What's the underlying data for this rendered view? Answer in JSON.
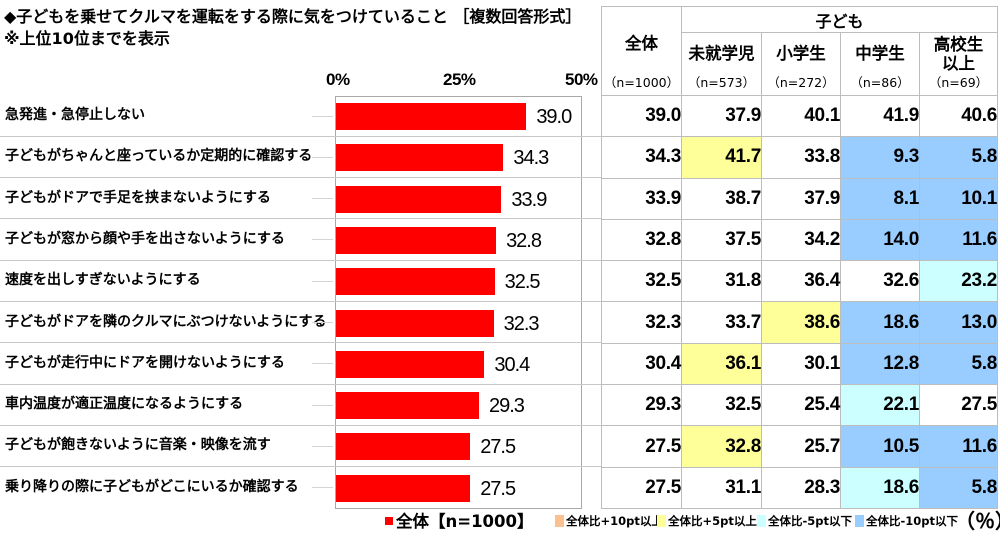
{
  "title": {
    "line1": "◆子どもを乗せてクルマを運転をする際に気をつけていること ［複数回答形式］",
    "line2": "※上位10位までを表示"
  },
  "colors": {
    "bar": "#FF0000",
    "plus10": "#FAC090",
    "plus5": "#FFFF99",
    "minus5": "#CCFFFF",
    "minus10": "#99CCFF"
  },
  "chart_data": [
    {
      "type": "bar",
      "orientation": "horizontal",
      "title": "子どもを乗せてクルマを運転をする際に気をつけていること［複数回答形式］",
      "xlabel": "",
      "ylabel": "",
      "xlim": [
        0,
        50
      ],
      "ticks": [
        "0%",
        "25%",
        "50%"
      ],
      "grid": false,
      "legend_position": "bottom",
      "categories": [
        "急発進・急停止しない",
        "子どもがちゃんと座っているか定期的に確認する",
        "子どもがドアで手足を挟まないようにする",
        "子どもが窓から顔や手を出さないようにする",
        "速度を出しすぎないようにする",
        "子どもがドアを隣のクルマにぶつけないようにする",
        "子どもが走行中にドアを開けないようにする",
        "車内温度が適正温度になるようにする",
        "子どもが飽きないように音楽・映像を流す",
        "乗り降りの際に子どもがどこにいるか確認する"
      ],
      "series": [
        {
          "name": "全体【n=1000】",
          "values": [
            39.0,
            34.3,
            33.9,
            32.8,
            32.5,
            32.3,
            30.4,
            29.3,
            27.5,
            27.5
          ],
          "labels": [
            "39.0",
            "34.3",
            "33.9",
            "32.8",
            "32.5",
            "32.3",
            "30.4",
            "29.3",
            "27.5",
            "27.5"
          ]
        }
      ]
    },
    {
      "type": "table",
      "unit": "（％）",
      "group_header": "子ども",
      "columns": [
        {
          "name": "全体",
          "n": "（n=1000）"
        },
        {
          "name": "未就学児",
          "n": "（n=573）"
        },
        {
          "name": "小学生",
          "n": "（n=272）"
        },
        {
          "name": "中学生",
          "n": "（n=86）"
        },
        {
          "name1": "高校生",
          "name2": "以上",
          "n": "（n=69）"
        }
      ],
      "rows": [
        {
          "values": [
            "39.0",
            "37.9",
            "40.1",
            "41.9",
            "40.6"
          ],
          "highlight": [
            "",
            "",
            "",
            "",
            ""
          ]
        },
        {
          "values": [
            "34.3",
            "41.7",
            "33.8",
            "9.3",
            "5.8"
          ],
          "highlight": [
            "",
            "plus5",
            "",
            "minus10",
            "minus10"
          ]
        },
        {
          "values": [
            "33.9",
            "38.7",
            "37.9",
            "8.1",
            "10.1"
          ],
          "highlight": [
            "",
            "",
            "",
            "minus10",
            "minus10"
          ]
        },
        {
          "values": [
            "32.8",
            "37.5",
            "34.2",
            "14.0",
            "11.6"
          ],
          "highlight": [
            "",
            "",
            "",
            "minus10",
            "minus10"
          ]
        },
        {
          "values": [
            "32.5",
            "31.8",
            "36.4",
            "32.6",
            "23.2"
          ],
          "highlight": [
            "",
            "",
            "",
            "",
            "minus5"
          ]
        },
        {
          "values": [
            "32.3",
            "33.7",
            "38.6",
            "18.6",
            "13.0"
          ],
          "highlight": [
            "",
            "",
            "plus5",
            "minus10",
            "minus10"
          ]
        },
        {
          "values": [
            "30.4",
            "36.1",
            "30.1",
            "12.8",
            "5.8"
          ],
          "highlight": [
            "",
            "plus5",
            "",
            "minus10",
            "minus10"
          ]
        },
        {
          "values": [
            "29.3",
            "32.5",
            "25.4",
            "22.1",
            "27.5"
          ],
          "highlight": [
            "",
            "",
            "",
            "minus5",
            ""
          ]
        },
        {
          "values": [
            "27.5",
            "32.8",
            "25.7",
            "10.5",
            "11.6"
          ],
          "highlight": [
            "",
            "plus5",
            "",
            "minus10",
            "minus10"
          ]
        },
        {
          "values": [
            "27.5",
            "31.1",
            "28.3",
            "18.6",
            "5.8"
          ],
          "highlight": [
            "",
            "",
            "",
            "minus5",
            "minus10"
          ]
        }
      ]
    }
  ],
  "legend": {
    "bar_label": "全体【n=1000】",
    "items": [
      {
        "key": "plus10",
        "label": "全体比+10pt以上"
      },
      {
        "key": "plus5",
        "label": "全体比+5pt以上"
      },
      {
        "key": "minus5",
        "label": "全体比-5pt以下"
      },
      {
        "key": "minus10",
        "label": "全体比-10pt以下"
      }
    ],
    "unit": "（％）"
  }
}
